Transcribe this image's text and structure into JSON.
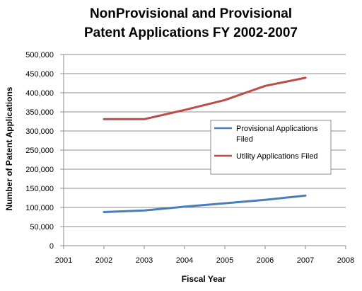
{
  "chart_data": {
    "type": "line",
    "title_lines": [
      "NonProvisional and Provisional",
      "Patent Applications FY 2002-2007"
    ],
    "xlabel": "Fiscal Year",
    "ylabel": "Number of Patent Applications",
    "xlim": [
      2001,
      2008
    ],
    "ylim": [
      0,
      500000
    ],
    "x_ticks": [
      2001,
      2002,
      2003,
      2004,
      2005,
      2006,
      2007,
      2008
    ],
    "x_tick_labels": [
      "2001",
      "2002",
      "2003",
      "2004",
      "2005",
      "2006",
      "2007",
      "2008"
    ],
    "y_ticks": [
      0,
      50000,
      100000,
      150000,
      200000,
      250000,
      300000,
      350000,
      400000,
      450000,
      500000
    ],
    "y_tick_labels": [
      "0",
      "50,000",
      "100,000",
      "150,000",
      "200,000",
      "250,000",
      "300,000",
      "350,000",
      "400,000",
      "450,000",
      "500,000"
    ],
    "grid": true,
    "legend_position": "right",
    "series": [
      {
        "name_lines": [
          "Provisional Applications",
          "Filed"
        ],
        "color": "#4a7ebb",
        "x": [
          2002,
          2003,
          2004,
          2005,
          2006,
          2007
        ],
        "y": [
          88000,
          92000,
          102000,
          111000,
          120000,
          131000
        ]
      },
      {
        "name_lines": [
          "Utility Applications Filed"
        ],
        "color": "#be4b48",
        "x": [
          2002,
          2003,
          2004,
          2005,
          2006,
          2007
        ],
        "y": [
          331000,
          331000,
          355000,
          381000,
          418000,
          439000
        ]
      }
    ]
  }
}
